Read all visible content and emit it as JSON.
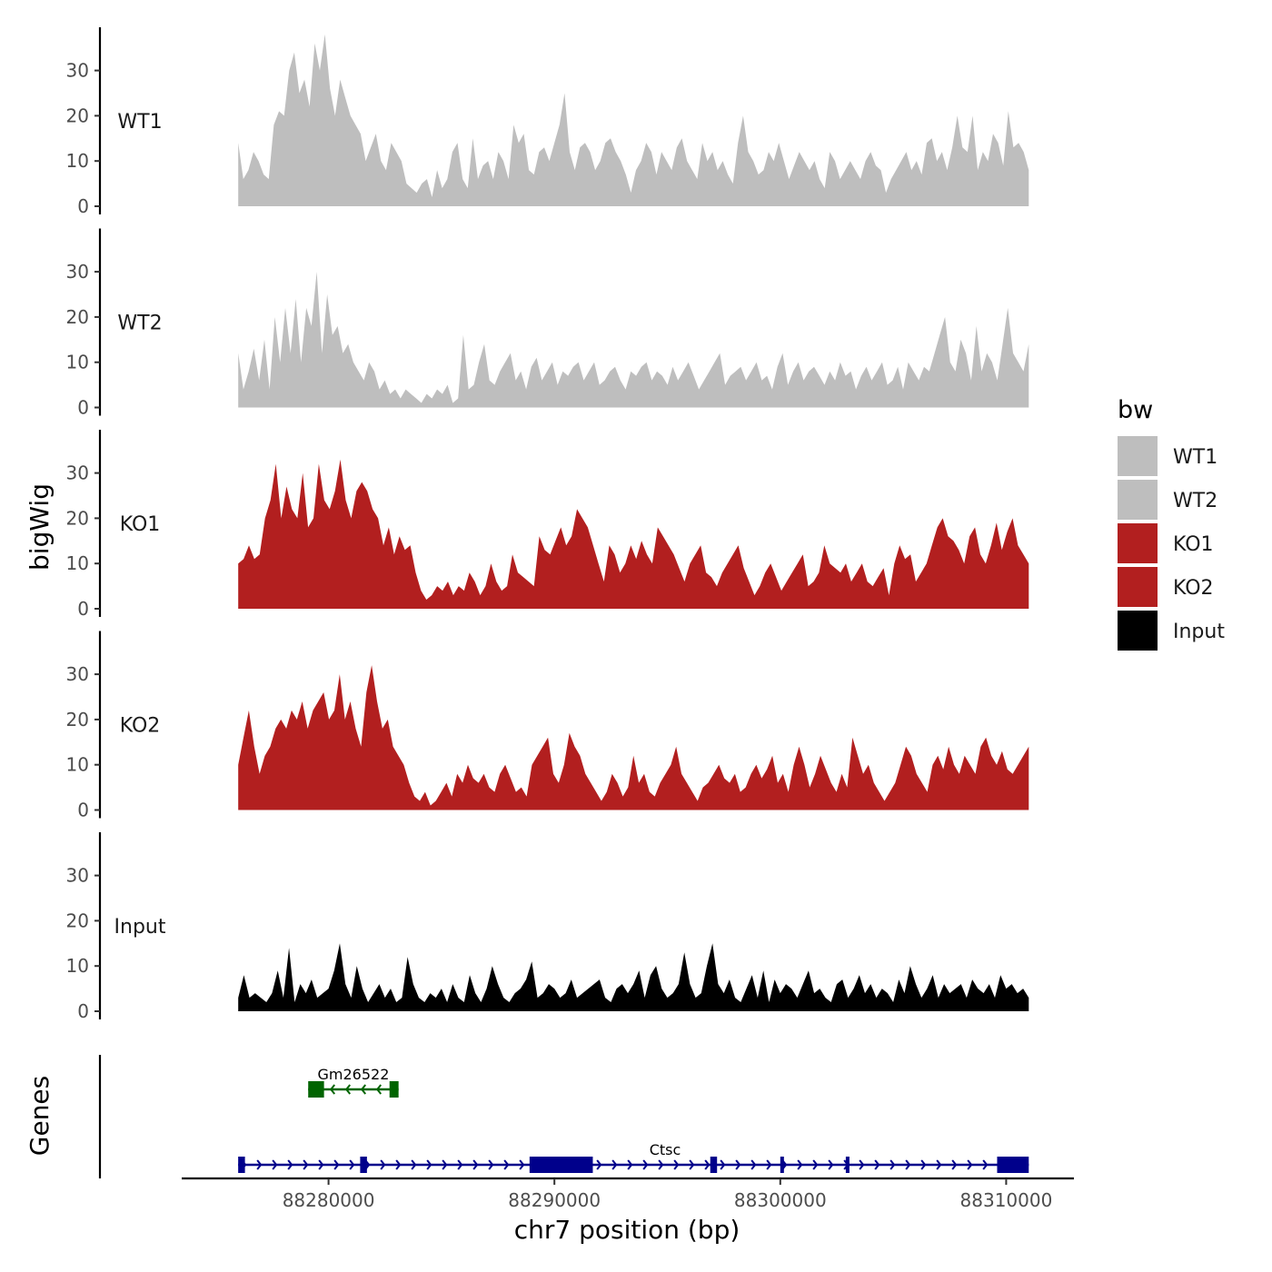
{
  "chart_data": {
    "type": "area",
    "ylabel": "bigWig",
    "xlabel": "chr7 position (bp)",
    "genes_label": "Genes",
    "x_range": [
      88276000,
      88311000
    ],
    "x_axis_limits": [
      88273500,
      88313000
    ],
    "x_ticks": [
      88280000,
      88290000,
      88300000,
      88310000
    ],
    "x_tick_labels": [
      "88280000",
      "88290000",
      "88300000",
      "88310000"
    ],
    "y_range": [
      0,
      39
    ],
    "y_ticks": [
      0,
      10,
      20,
      30
    ],
    "y_tick_labels": [
      "0",
      "10",
      "20",
      "30"
    ],
    "tracks": [
      {
        "name": "WT1",
        "color": "#bebebe",
        "values": [
          14,
          6,
          8,
          12,
          10,
          7,
          6,
          18,
          21,
          20,
          30,
          34,
          25,
          28,
          22,
          36,
          30,
          38,
          26,
          20,
          28,
          24,
          20,
          18,
          16,
          10,
          13,
          16,
          10,
          8,
          14,
          12,
          10,
          5,
          4,
          3,
          5,
          6,
          2,
          8,
          4,
          6,
          12,
          14,
          6,
          4,
          15,
          6,
          9,
          10,
          6,
          12,
          10,
          6,
          18,
          14,
          16,
          8,
          7,
          12,
          13,
          10,
          14,
          18,
          25,
          12,
          8,
          13,
          14,
          12,
          8,
          10,
          14,
          15,
          12,
          10,
          7,
          3,
          8,
          10,
          14,
          12,
          7,
          12,
          10,
          8,
          13,
          15,
          10,
          8,
          6,
          14,
          10,
          12,
          8,
          10,
          7,
          5,
          14,
          20,
          12,
          10,
          7,
          8,
          12,
          10,
          14,
          10,
          6,
          9,
          12,
          10,
          8,
          10,
          6,
          4,
          12,
          10,
          6,
          8,
          10,
          8,
          6,
          10,
          12,
          9,
          8,
          3,
          6,
          8,
          10,
          12,
          8,
          10,
          7,
          14,
          15,
          10,
          12,
          8,
          13,
          20,
          13,
          12,
          20,
          8,
          12,
          10,
          16,
          14,
          9,
          21,
          13,
          14,
          12,
          8
        ]
      },
      {
        "name": "WT2",
        "color": "#bebebe",
        "values": [
          12,
          4,
          8,
          13,
          6,
          15,
          4,
          20,
          10,
          22,
          12,
          24,
          10,
          22,
          18,
          30,
          12,
          25,
          16,
          18,
          12,
          14,
          10,
          8,
          6,
          10,
          8,
          4,
          6,
          3,
          4,
          2,
          4,
          3,
          2,
          1,
          3,
          2,
          4,
          3,
          5,
          1,
          2,
          16,
          4,
          5,
          10,
          14,
          6,
          5,
          8,
          10,
          12,
          6,
          8,
          4,
          9,
          11,
          6,
          8,
          10,
          5,
          8,
          7,
          9,
          10,
          6,
          8,
          10,
          5,
          6,
          8,
          9,
          6,
          4,
          8,
          7,
          9,
          10,
          6,
          8,
          7,
          5,
          9,
          6,
          8,
          10,
          7,
          4,
          6,
          8,
          10,
          12,
          5,
          7,
          8,
          9,
          6,
          8,
          10,
          6,
          7,
          4,
          9,
          12,
          5,
          8,
          10,
          6,
          8,
          9,
          7,
          5,
          8,
          6,
          10,
          7,
          8,
          4,
          7,
          9,
          6,
          8,
          10,
          5,
          6,
          9,
          4,
          10,
          8,
          6,
          9,
          8,
          12,
          16,
          20,
          10,
          8,
          15,
          12,
          6,
          18,
          8,
          12,
          10,
          6,
          14,
          22,
          12,
          10,
          8,
          14
        ]
      },
      {
        "name": "KO1",
        "color": "#b21f1f",
        "values": [
          10,
          11,
          14,
          11,
          12,
          20,
          24,
          32,
          20,
          27,
          22,
          20,
          30,
          18,
          20,
          32,
          24,
          22,
          26,
          33,
          24,
          20,
          26,
          28,
          26,
          22,
          20,
          14,
          18,
          12,
          16,
          13,
          14,
          8,
          4,
          2,
          3,
          5,
          4,
          6,
          3,
          5,
          4,
          8,
          6,
          3,
          5,
          10,
          6,
          4,
          5,
          12,
          8,
          7,
          6,
          5,
          16,
          13,
          12,
          15,
          18,
          14,
          16,
          22,
          20,
          18,
          14,
          10,
          6,
          14,
          12,
          8,
          10,
          14,
          11,
          15,
          12,
          10,
          18,
          16,
          14,
          12,
          9,
          6,
          10,
          12,
          14,
          8,
          7,
          5,
          8,
          10,
          12,
          14,
          9,
          6,
          3,
          5,
          8,
          10,
          7,
          4,
          6,
          8,
          10,
          12,
          5,
          6,
          8,
          14,
          10,
          9,
          8,
          10,
          6,
          8,
          10,
          6,
          5,
          7,
          9,
          3,
          10,
          14,
          11,
          12,
          6,
          8,
          10,
          14,
          18,
          20,
          16,
          15,
          13,
          10,
          16,
          18,
          12,
          10,
          14,
          19,
          13,
          17,
          20,
          14,
          12,
          10
        ]
      },
      {
        "name": "KO2",
        "color": "#b21f1f",
        "values": [
          10,
          16,
          22,
          14,
          8,
          12,
          14,
          18,
          20,
          18,
          22,
          20,
          24,
          18,
          22,
          24,
          26,
          20,
          22,
          30,
          20,
          24,
          18,
          14,
          26,
          32,
          24,
          18,
          20,
          14,
          12,
          10,
          6,
          3,
          2,
          4,
          1,
          2,
          4,
          6,
          3,
          8,
          6,
          10,
          7,
          6,
          8,
          5,
          4,
          8,
          10,
          7,
          4,
          5,
          3,
          10,
          12,
          14,
          16,
          8,
          6,
          10,
          17,
          14,
          12,
          8,
          6,
          4,
          2,
          4,
          8,
          6,
          3,
          5,
          12,
          6,
          8,
          4,
          3,
          6,
          8,
          10,
          14,
          8,
          6,
          4,
          2,
          5,
          6,
          8,
          10,
          7,
          6,
          8,
          4,
          5,
          8,
          10,
          7,
          9,
          12,
          6,
          8,
          4,
          10,
          14,
          10,
          5,
          8,
          12,
          9,
          6,
          4,
          8,
          5,
          16,
          12,
          8,
          10,
          6,
          4,
          2,
          4,
          6,
          10,
          14,
          12,
          8,
          6,
          4,
          10,
          12,
          9,
          14,
          10,
          8,
          12,
          10,
          8,
          14,
          16,
          12,
          10,
          13,
          9,
          8,
          10,
          12,
          14
        ]
      },
      {
        "name": "Input",
        "color": "#000000",
        "values": [
          3,
          8,
          3,
          4,
          3,
          2,
          4,
          9,
          3,
          14,
          2,
          6,
          4,
          7,
          3,
          4,
          5,
          9,
          15,
          6,
          3,
          10,
          5,
          2,
          4,
          6,
          3,
          5,
          2,
          3,
          12,
          6,
          3,
          2,
          4,
          3,
          5,
          2,
          6,
          3,
          2,
          8,
          4,
          2,
          5,
          10,
          6,
          3,
          2,
          4,
          5,
          7,
          11,
          3,
          4,
          6,
          5,
          3,
          4,
          7,
          3,
          4,
          5,
          6,
          7,
          3,
          2,
          5,
          6,
          4,
          6,
          9,
          3,
          8,
          10,
          5,
          3,
          4,
          6,
          13,
          6,
          3,
          4,
          10,
          15,
          6,
          4,
          7,
          3,
          2,
          5,
          8,
          3,
          9,
          2,
          7,
          4,
          6,
          5,
          3,
          6,
          9,
          4,
          5,
          3,
          2,
          6,
          7,
          3,
          5,
          8,
          4,
          6,
          3,
          5,
          4,
          2,
          7,
          4,
          10,
          6,
          3,
          5,
          8,
          3,
          6,
          4,
          5,
          6,
          3,
          7,
          5,
          4,
          6,
          3,
          8,
          5,
          6,
          4,
          5,
          3
        ]
      }
    ],
    "legend": {
      "title": "bw",
      "position": "right",
      "entries": [
        {
          "label": "WT1",
          "color": "#bebebe"
        },
        {
          "label": "WT2",
          "color": "#bebebe"
        },
        {
          "label": "KO1",
          "color": "#b21f1f"
        },
        {
          "label": "KO2",
          "color": "#b21f1f"
        },
        {
          "label": "Input",
          "color": "#000000"
        }
      ]
    },
    "genes": [
      {
        "name": "Gm26522",
        "strand": "-",
        "color": "#006400",
        "start": 88279100,
        "end": 88283100,
        "exons": [
          [
            88279100,
            88279800
          ],
          [
            88282700,
            88283100
          ]
        ]
      },
      {
        "name": "Ctsc",
        "strand": "+",
        "color": "#00008b",
        "start": 88276000,
        "end": 88311000,
        "exons": [
          [
            88276000,
            88276300
          ],
          [
            88281400,
            88281700
          ],
          [
            88288900,
            88291700
          ],
          [
            88296900,
            88297200
          ],
          [
            88300000,
            88300150
          ],
          [
            88302900,
            88303050
          ],
          [
            88309600,
            88311000
          ]
        ]
      }
    ]
  }
}
